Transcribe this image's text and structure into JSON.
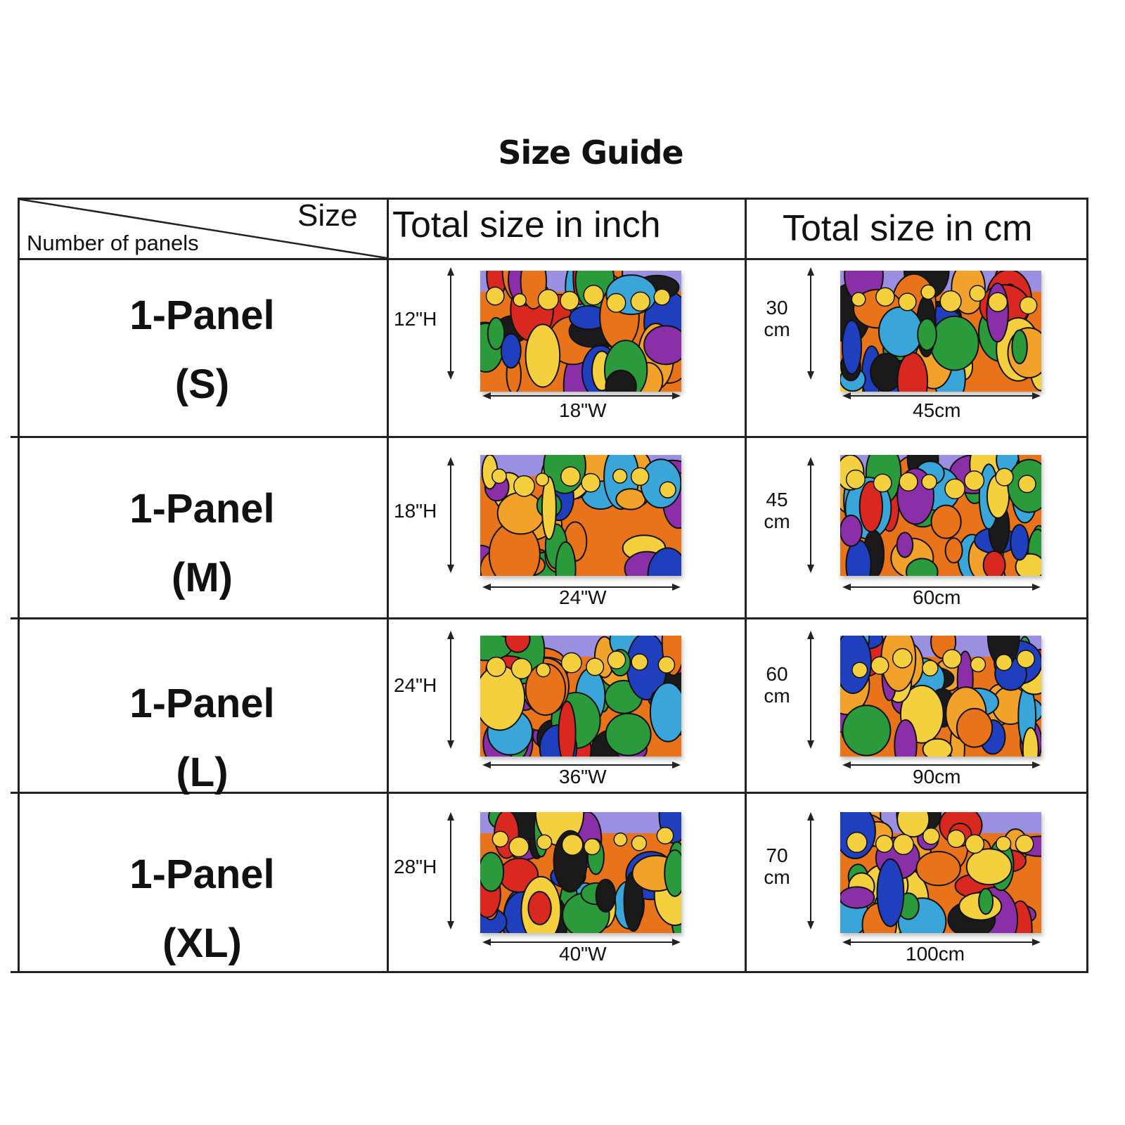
{
  "title": "Size Guide",
  "header": {
    "corner_size": "Size",
    "corner_panels": "Number of panels",
    "col_inch": "Total size in inch",
    "col_cm": "Total size in cm"
  },
  "rows": [
    {
      "panels": "1-Panel",
      "size": "(S)",
      "inch_h": "12\"H",
      "inch_w": "18\"W",
      "cm_h_num": "30",
      "cm_h_unit": "cm",
      "cm_w": "45cm"
    },
    {
      "panels": "1-Panel",
      "size": "(M)",
      "inch_h": "18\"H",
      "inch_w": "24\"W",
      "cm_h_num": "45",
      "cm_h_unit": "cm",
      "cm_w": "60cm"
    },
    {
      "panels": "1-Panel",
      "size": "(L)",
      "inch_h": "24\"H",
      "inch_w": "36\"W",
      "cm_h_num": "60",
      "cm_h_unit": "cm",
      "cm_w": "90cm"
    },
    {
      "panels": "1-Panel",
      "size": "(XL)",
      "inch_h": "28\"H",
      "inch_w": "40\"W",
      "cm_h_num": "70",
      "cm_h_unit": "cm",
      "cm_w": "100cm"
    }
  ],
  "artwork": {
    "description_icon": "colorful-abstract-painting-image",
    "colors": [
      "#e8731a",
      "#f2a12a",
      "#1f3fbf",
      "#2b9a3a",
      "#8a2fa8",
      "#d9281f",
      "#f4d03f",
      "#3aa5d8",
      "#1a1a1a"
    ]
  }
}
